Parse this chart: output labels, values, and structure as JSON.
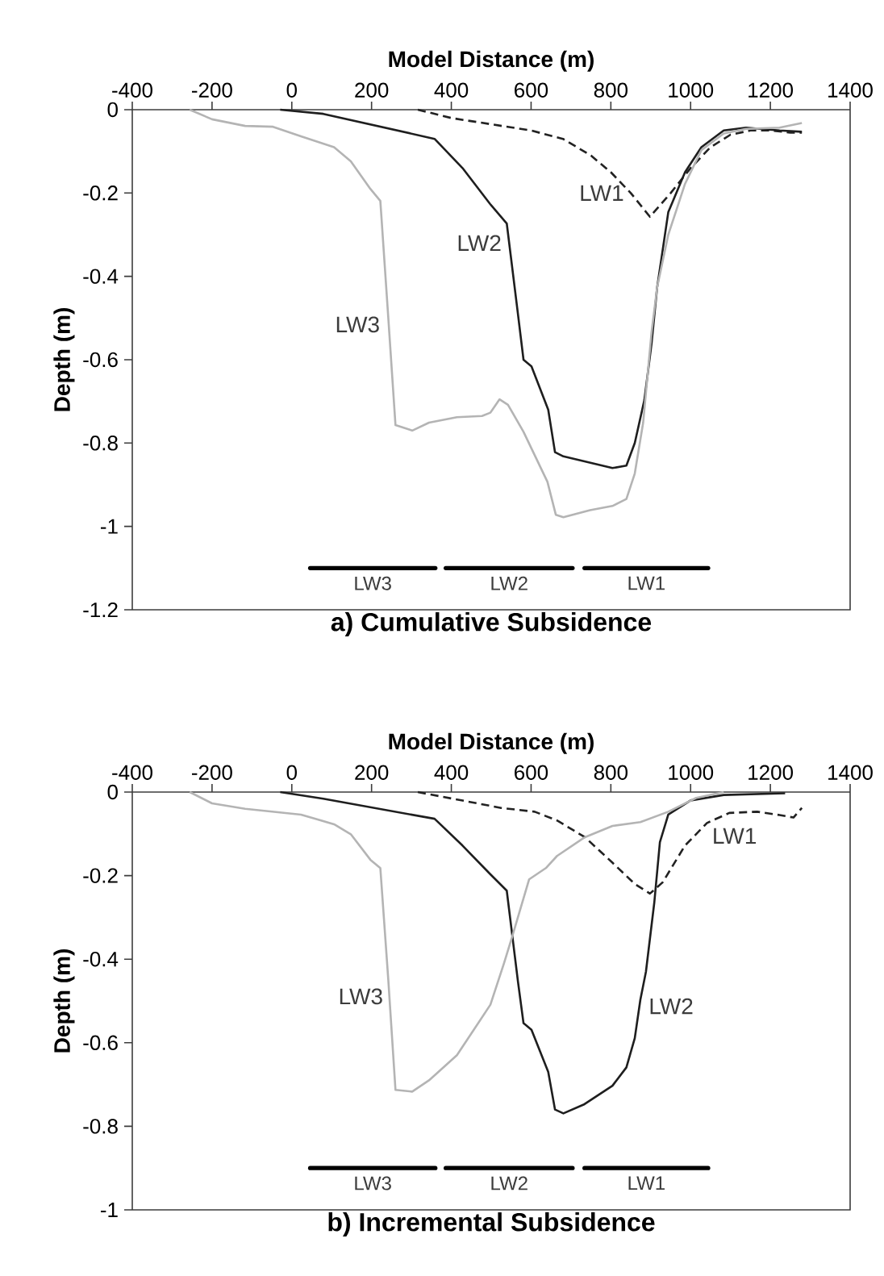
{
  "chart_data": [
    {
      "type": "line",
      "title": "a) Cumulative Subsidence",
      "xlabel": "Model Distance (m)",
      "ylabel": "Depth (m)",
      "xlim": [
        -400,
        1400
      ],
      "xticks": [
        -400,
        -200,
        0,
        200,
        400,
        600,
        800,
        1000,
        1200,
        1400
      ],
      "ylim": [
        -1.2,
        0
      ],
      "yticks": [
        -1.2,
        -1,
        -0.8,
        -0.6,
        -0.4,
        -0.2,
        0
      ],
      "series": [
        {
          "name": "LW1",
          "color": "#222222",
          "line_style": "dashed",
          "x": [
            316,
            400,
            500,
            600,
            680,
            750,
            800,
            850,
            898,
            950,
            1000,
            1050,
            1100,
            1150,
            1200,
            1250,
            1279
          ],
          "values": [
            0,
            -0.02,
            -0.035,
            -0.05,
            -0.07,
            -0.11,
            -0.15,
            -0.2,
            -0.257,
            -0.2,
            -0.14,
            -0.09,
            -0.06,
            -0.05,
            -0.05,
            -0.055,
            -0.055
          ]
        },
        {
          "name": "LW2",
          "color": "#1e1e1e",
          "line_style": "solid",
          "x": [
            -29,
            79,
            358,
            428,
            497,
            539,
            567,
            581,
            601,
            643,
            660,
            681,
            804,
            839,
            860,
            884,
            902,
            916,
            944,
            986,
            1027,
            1083,
            1139,
            1223,
            1279
          ],
          "values": [
            0,
            -0.01,
            -0.07,
            -0.14,
            -0.226,
            -0.273,
            -0.49,
            -0.6,
            -0.616,
            -0.72,
            -0.822,
            -0.832,
            -0.86,
            -0.854,
            -0.8,
            -0.697,
            -0.562,
            -0.427,
            -0.246,
            -0.15,
            -0.09,
            -0.05,
            -0.043,
            -0.05,
            -0.053
          ]
        },
        {
          "name": "LW3",
          "color": "#b4b4b4",
          "line_style": "solid",
          "x": [
            -256,
            -200,
            -117,
            -47,
            23,
            106,
            148,
            197,
            222,
            242,
            260,
            302,
            344,
            414,
            477,
            498,
            521,
            542,
            581,
            641,
            662,
            681,
            748,
            804,
            839,
            860,
            881,
            902,
            916,
            944,
            986,
            1027,
            1083,
            1139,
            1223,
            1279
          ],
          "values": [
            0,
            -0.023,
            -0.039,
            -0.041,
            -0.064,
            -0.09,
            -0.124,
            -0.19,
            -0.219,
            -0.5,
            -0.757,
            -0.77,
            -0.751,
            -0.738,
            -0.735,
            -0.727,
            -0.695,
            -0.708,
            -0.773,
            -0.893,
            -0.972,
            -0.978,
            -0.961,
            -0.951,
            -0.934,
            -0.873,
            -0.751,
            -0.535,
            -0.427,
            -0.3,
            -0.178,
            -0.097,
            -0.057,
            -0.046,
            -0.043,
            -0.032
          ]
        },
        {
          "name": "LW3",
          "color": "#000000",
          "line_style": "solid",
          "x": [
            46,
            360
          ],
          "values": [
            -1.1,
            -1.1
          ]
        },
        {
          "name": "LW2",
          "color": "#000000",
          "line_style": "solid",
          "x": [
            386,
            704
          ],
          "values": [
            -1.1,
            -1.1
          ]
        },
        {
          "name": "LW1",
          "color": "#000000",
          "line_style": "solid",
          "x": [
            734,
            1044
          ],
          "values": [
            -1.1,
            -1.1
          ]
        }
      ]
    },
    {
      "type": "line",
      "title": "b) Incremental Subsidence",
      "xlabel": "Model Distance (m)",
      "ylabel": "Depth (m)",
      "xlim": [
        -400,
        1400
      ],
      "xticks": [
        -400,
        -200,
        0,
        200,
        400,
        600,
        800,
        1000,
        1200,
        1400
      ],
      "ylim": [
        -1,
        0
      ],
      "yticks": [
        -1,
        -0.8,
        -0.6,
        -0.4,
        -0.2,
        0
      ],
      "series": [
        {
          "name": "LW1",
          "color": "#222222",
          "line_style": "dashed",
          "x": [
            316,
            525,
            609,
            665,
            735,
            804,
            860,
            898,
            930,
            986,
            1041,
            1097,
            1167,
            1223,
            1258,
            1279
          ],
          "values": [
            0,
            -0.038,
            -0.047,
            -0.068,
            -0.108,
            -0.169,
            -0.22,
            -0.243,
            -0.216,
            -0.128,
            -0.074,
            -0.05,
            -0.047,
            -0.055,
            -0.061,
            -0.038
          ]
        },
        {
          "name": "LW2",
          "color": "#1e1e1e",
          "line_style": "solid",
          "x": [
            -29,
            79,
            358,
            428,
            497,
            539,
            567,
            581,
            601,
            643,
            660,
            681,
            734,
            804,
            839,
            860,
            874,
            888,
            909,
            923,
            944,
            1000,
            1083,
            1237
          ],
          "values": [
            0,
            -0.016,
            -0.064,
            -0.128,
            -0.196,
            -0.236,
            -0.453,
            -0.553,
            -0.569,
            -0.67,
            -0.76,
            -0.769,
            -0.747,
            -0.703,
            -0.659,
            -0.589,
            -0.497,
            -0.43,
            -0.264,
            -0.12,
            -0.054,
            -0.02,
            -0.007,
            -0.003
          ]
        },
        {
          "name": "LW3",
          "color": "#b4b4b4",
          "line_style": "solid",
          "x": [
            -256,
            -200,
            -117,
            23,
            106,
            148,
            197,
            222,
            242,
            260,
            302,
            344,
            414,
            498,
            532,
            553,
            595,
            637,
            665,
            735,
            804,
            874,
            944,
            1014,
            1083
          ],
          "values": [
            0,
            -0.027,
            -0.04,
            -0.054,
            -0.077,
            -0.101,
            -0.162,
            -0.182,
            -0.45,
            -0.713,
            -0.717,
            -0.69,
            -0.63,
            -0.509,
            -0.41,
            -0.345,
            -0.209,
            -0.182,
            -0.153,
            -0.108,
            -0.081,
            -0.072,
            -0.047,
            -0.014,
            0
          ]
        },
        {
          "name": "LW3",
          "color": "#000000",
          "line_style": "solid",
          "x": [
            46,
            360
          ],
          "values": [
            -0.9,
            -0.9
          ]
        },
        {
          "name": "LW2",
          "color": "#000000",
          "line_style": "solid",
          "x": [
            386,
            704
          ],
          "values": [
            -0.9,
            -0.9
          ]
        },
        {
          "name": "LW1",
          "color": "#000000",
          "line_style": "solid",
          "x": [
            734,
            1044
          ],
          "values": [
            -0.9,
            -0.9
          ]
        }
      ]
    }
  ]
}
